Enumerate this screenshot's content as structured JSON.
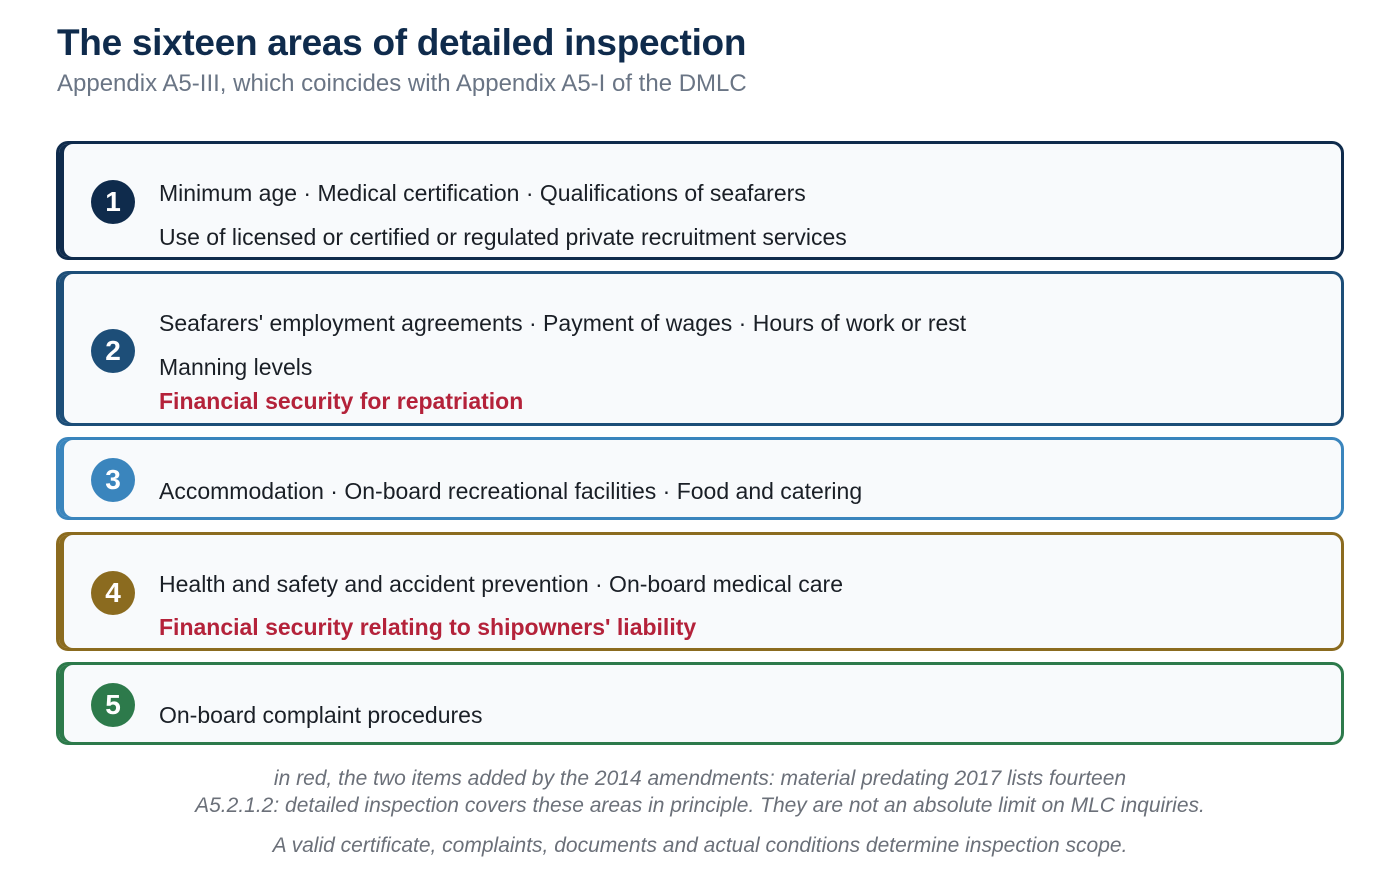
{
  "header": {
    "title": "The sixteen areas of detailed inspection",
    "subtitle": "Appendix A5-III, which coincides with Appendix A5-I of the DMLC"
  },
  "colors": {
    "title": "#0f2b4c",
    "added_item": "#b4223a",
    "group1": "#0f2b4c",
    "group2": "#1d4e78",
    "group3": "#3a85bd",
    "group4": "#8b6b1f",
    "group5": "#2d7a4b"
  },
  "groups": [
    {
      "number": "1",
      "lines": [
        "Minimum age · Medical certification · Qualifications of seafarers",
        "Use of licensed or certified or regulated private recruitment services"
      ]
    },
    {
      "number": "2",
      "lines": [
        "Seafarers' employment agreements · Payment of wages · Hours of work or rest",
        "Manning levels"
      ],
      "added": "Financial security for repatriation"
    },
    {
      "number": "3",
      "lines": [
        "Accommodation · On-board recreational facilities · Food and catering"
      ]
    },
    {
      "number": "4",
      "lines": [
        "Health and safety and accident prevention · On-board medical care"
      ],
      "added": "Financial security relating to shipowners' liability"
    },
    {
      "number": "5",
      "lines": [
        "On-board complaint procedures"
      ]
    }
  ],
  "footnotes": {
    "note1": "in red, the two items added by the 2014 amendments: material predating 2017 lists fourteen",
    "note2": "A5.2.1.2: detailed inspection covers these areas in principle. They are not an absolute limit on MLC inquiries.",
    "note3": "A valid certificate, complaints, documents and actual conditions determine inspection scope."
  }
}
